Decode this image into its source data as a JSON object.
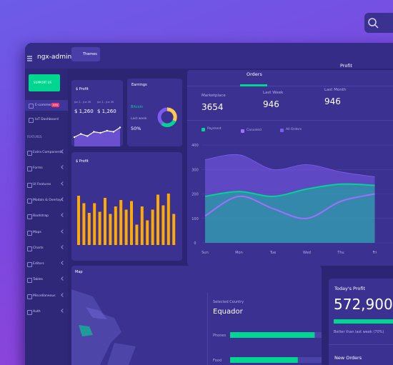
{
  "header": {
    "brand": "ngx-admin",
    "theme_button": "Themes"
  },
  "sidebar": {
    "support_button": "SUPPORT US",
    "items": [
      {
        "label": "E-commerce",
        "badge": "new"
      },
      {
        "label": "IoT Dashboard"
      }
    ],
    "section": "FEATURES",
    "features": [
      "Extra Components",
      "Forms",
      "UI Features",
      "Modals & Overlays",
      "Bootstrap",
      "Maps",
      "Charts",
      "Editors",
      "Tables",
      "Miscellaneous",
      "Auth"
    ]
  },
  "profit_card": {
    "title": "$ Profit",
    "periods": [
      {
        "range": "Jun 1 - Jun 30",
        "value": "$ 1,260"
      },
      {
        "range": "Jun 1 - Jun 30",
        "value": "$ 1,260"
      }
    ],
    "chart": {
      "type": "line",
      "color": "#ffffff",
      "ylim": [
        0,
        100
      ],
      "values": [
        30,
        45,
        35,
        55,
        50,
        60,
        55,
        75
      ]
    }
  },
  "earnings_card": {
    "title": "Earnings",
    "currency": "Bitcoin",
    "period": "Last week",
    "change": "50%"
  },
  "bar_card": {
    "title": "$ Profit",
    "chart": {
      "type": "bar",
      "color": "#ffaa00",
      "ylim": [
        0,
        100
      ],
      "values": [
        92,
        78,
        60,
        78,
        62,
        88,
        58,
        72,
        84,
        66,
        82,
        38,
        72,
        46,
        66,
        94,
        74,
        96,
        58
      ]
    }
  },
  "orders_card": {
    "tabs": [
      "Orders",
      "Profit"
    ],
    "stats": [
      {
        "label": "Marketplace",
        "value": 3654
      },
      {
        "label": "Last Week",
        "value": 946
      },
      {
        "label": "Last Month",
        "value": 946
      }
    ],
    "chart": {
      "type": "area",
      "categories": [
        "Sun",
        "Mon",
        "Tue",
        "Wed",
        "Thu",
        "Fri"
      ],
      "ylim": [
        0,
        400
      ],
      "yticks": [
        0,
        100,
        200,
        300,
        400
      ],
      "series": [
        {
          "name": "All Orders",
          "color": "#7e5bef",
          "values": [
            340,
            360,
            300,
            320,
            290,
            270
          ]
        },
        {
          "name": "Payment",
          "color": "#00d68f",
          "values": [
            190,
            210,
            190,
            220,
            240,
            235
          ]
        },
        {
          "name": "Canceled",
          "color": "#a16eff",
          "values": [
            110,
            190,
            140,
            100,
            170,
            200
          ]
        }
      ]
    }
  },
  "map_card": {
    "title": "Map",
    "selected_label": "Selected Country",
    "country": "Equador",
    "categories": [
      "Phones",
      "Food"
    ],
    "values": [
      80,
      64
    ],
    "xlim": [
      0,
      100
    ]
  },
  "today_card": {
    "title": "Today's Profit",
    "value": "572,900",
    "note": "Better than last week (70%)",
    "footer": "New Orders"
  }
}
